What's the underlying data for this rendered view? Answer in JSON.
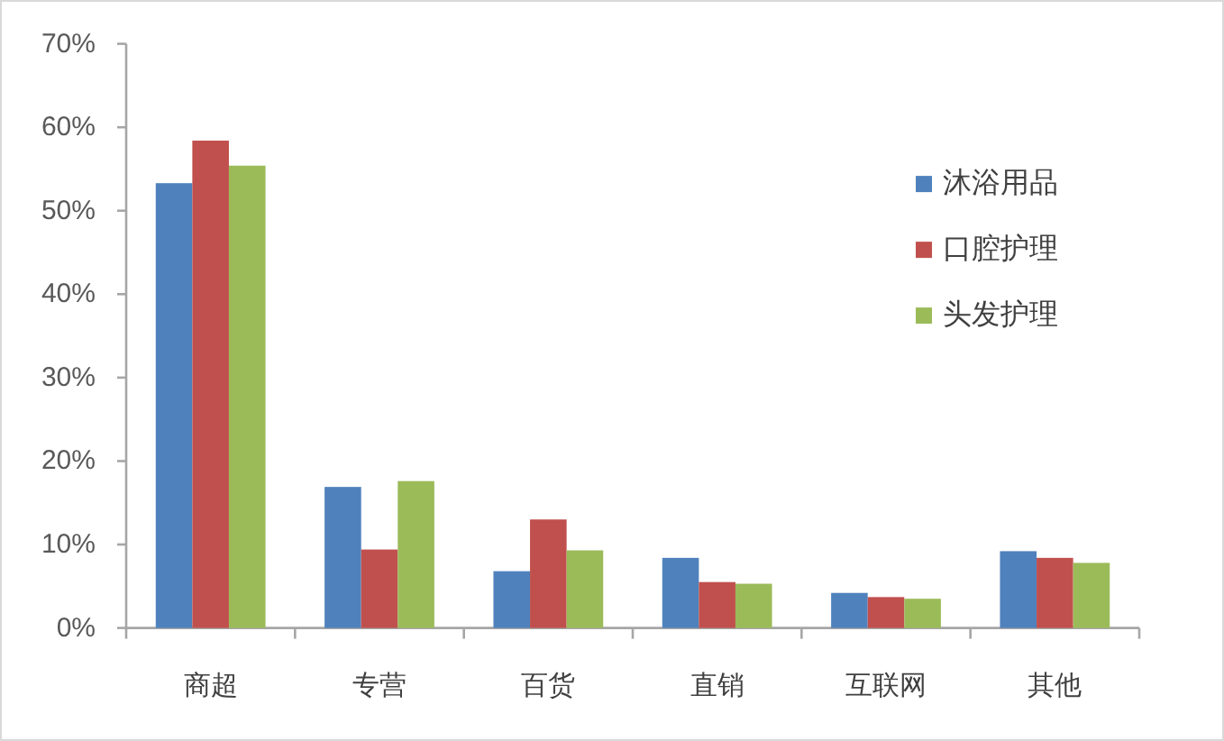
{
  "chart_data": {
    "type": "bar",
    "categories": [
      "商超",
      "专营",
      "百货",
      "直销",
      "互联网",
      "其他"
    ],
    "series": [
      {
        "name": "沐浴用品",
        "color": "#4f81bd",
        "values": [
          53.3,
          16.9,
          6.8,
          8.4,
          4.2,
          9.2
        ]
      },
      {
        "name": "口腔护理",
        "color": "#c0504d",
        "values": [
          58.4,
          9.4,
          13.0,
          5.5,
          3.7,
          8.4
        ]
      },
      {
        "name": "头发护理",
        "color": "#9bbb59",
        "values": [
          55.4,
          17.6,
          9.3,
          5.3,
          3.5,
          7.8
        ]
      }
    ],
    "ylim": [
      0,
      70
    ],
    "yticks": [
      {
        "value": 0,
        "label": "0%"
      },
      {
        "value": 10,
        "label": "10%"
      },
      {
        "value": 20,
        "label": "20%"
      },
      {
        "value": 30,
        "label": "30%"
      },
      {
        "value": 40,
        "label": "40%"
      },
      {
        "value": 50,
        "label": "50%"
      },
      {
        "value": 60,
        "label": "60%"
      },
      {
        "value": 70,
        "label": "70%"
      }
    ],
    "legend": "right"
  }
}
